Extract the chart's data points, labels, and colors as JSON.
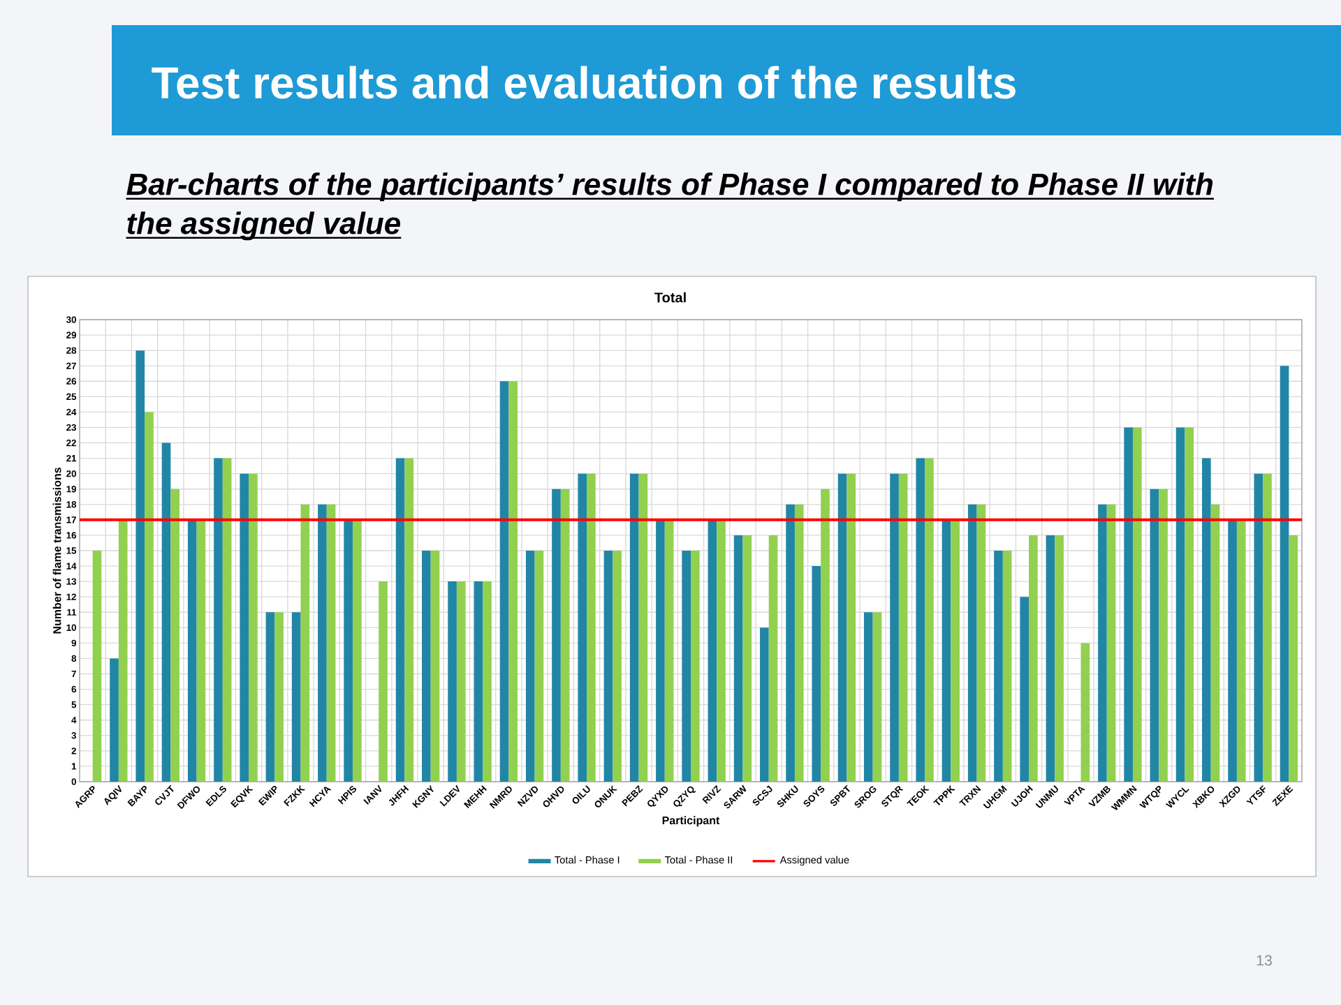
{
  "chart_data": {
    "type": "bar",
    "title": "Test results and evaluation of the results",
    "subtitle": "Bar-charts of the participants’ results of Phase I compared to Phase II with the assigned value",
    "xlabel": "Participant",
    "ylabel": "Number of flame transmissions",
    "annotations": [
      "Total",
      "13"
    ],
    "categories": [
      "AGRP",
      "AQIV",
      "BAYP",
      "CVJT",
      "DFWO",
      "EDLS",
      "EQVK",
      "EWIP",
      "FZKK",
      "HCYA",
      "HPIS",
      "IANV",
      "JHFH",
      "KGNY",
      "LDEV",
      "MEHH",
      "NMRD",
      "NZVD",
      "OHVD",
      "OILU",
      "ONUK",
      "PEBZ",
      "QYXD",
      "QZYQ",
      "RIVZ",
      "SARW",
      "SCSJ",
      "SHKU",
      "SOYS",
      "SPBT",
      "SROG",
      "STQR",
      "TEOK",
      "TPPK",
      "TRXN",
      "UHGM",
      "UJOH",
      "UNMU",
      "VPTA",
      "VZMB",
      "WMMN",
      "WTQP",
      "WYCL",
      "XBKO",
      "XZGD",
      "YTSF",
      "ZEXE"
    ],
    "series": [
      {
        "name": "Total - Phase I",
        "color": "#2186a5",
        "values": [
          null,
          8,
          28,
          22,
          17,
          21,
          20,
          11,
          11,
          18,
          17,
          null,
          21,
          15,
          13,
          13,
          26,
          15,
          19,
          20,
          15,
          20,
          17,
          15,
          17,
          16,
          10,
          18,
          14,
          20,
          11,
          20,
          21,
          17,
          18,
          15,
          12,
          16,
          null,
          18,
          23,
          19,
          23,
          21,
          17,
          20,
          27
        ]
      },
      {
        "name": "Total - Phase II",
        "color": "#92d050",
        "values": [
          15,
          17,
          24,
          19,
          17,
          21,
          20,
          11,
          18,
          18,
          17,
          13,
          21,
          15,
          13,
          13,
          26,
          15,
          19,
          20,
          15,
          20,
          17,
          15,
          17,
          16,
          16,
          18,
          19,
          20,
          11,
          20,
          21,
          17,
          18,
          15,
          16,
          16,
          9,
          18,
          23,
          19,
          23,
          18,
          17,
          20,
          16
        ]
      }
    ],
    "ylim": [
      0,
      30
    ],
    "yticks": [
      0,
      1,
      2,
      3,
      4,
      5,
      6,
      7,
      8,
      9,
      10,
      11,
      12,
      13,
      14,
      15,
      16,
      17,
      18,
      19,
      20,
      21,
      22,
      23,
      24,
      25,
      26,
      27,
      28,
      29,
      30
    ],
    "ref_lines": [
      {
        "axis": "y",
        "value": 17,
        "label": "Assigned value",
        "color": "#ff0000"
      }
    ],
    "grid": true,
    "legend": "bottom"
  }
}
